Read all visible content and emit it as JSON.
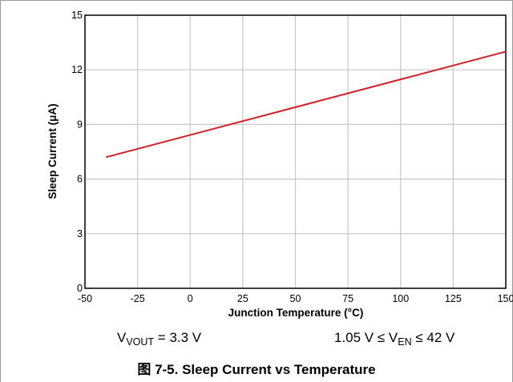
{
  "chart_data": {
    "type": "line",
    "xlabel": "Junction Temperature (°C)",
    "ylabel": "Sleep Current (μA)",
    "xlim": [
      -50,
      150
    ],
    "ylim": [
      0,
      15
    ],
    "x_ticks": [
      -50,
      -25,
      0,
      25,
      50,
      75,
      100,
      125,
      150
    ],
    "y_ticks": [
      0,
      3,
      6,
      9,
      12,
      15
    ],
    "grid": true,
    "series": [
      {
        "color": "#d11f26",
        "x": [
          -40,
          150
        ],
        "y": [
          7.2,
          13.0
        ]
      }
    ]
  },
  "conditions": {
    "left": {
      "prefix": "V",
      "subscript": "VOUT",
      "suffix": " = 3.3 V"
    },
    "right": {
      "prefix": "1.05 V ≤ V",
      "subscript": "EN",
      "suffix": " ≤ 42 V"
    }
  },
  "caption": "图 7-5. Sleep Current vs Temperature"
}
